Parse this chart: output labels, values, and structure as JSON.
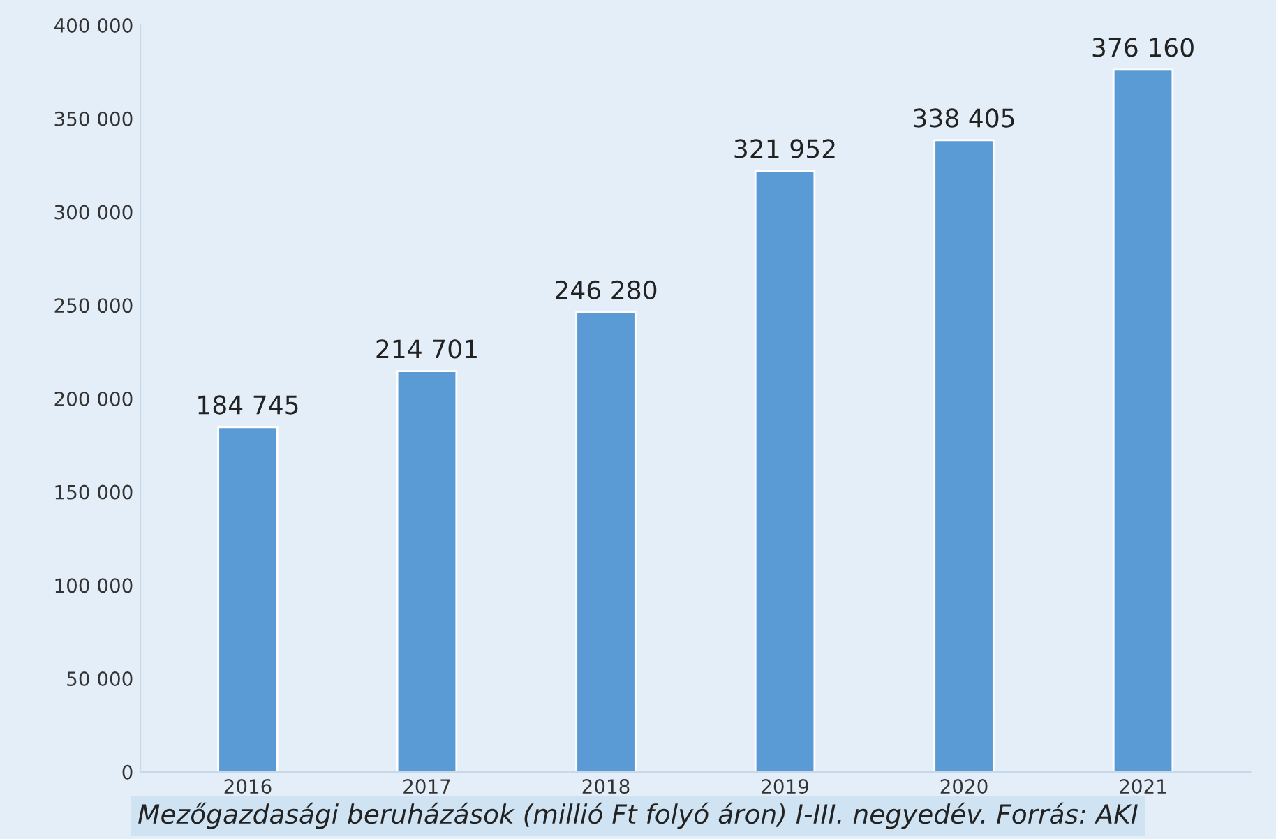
{
  "chart_data": {
    "type": "bar",
    "categories": [
      "2016",
      "2017",
      "2018",
      "2019",
      "2020",
      "2021"
    ],
    "values": [
      184745,
      214701,
      246280,
      321952,
      338405,
      376160
    ],
    "value_labels": [
      "184 745",
      "214 701",
      "246 280",
      "321 952",
      "338 405",
      "376 160"
    ],
    "color": "#5b9bd5",
    "ylim": [
      0,
      400000
    ],
    "yticks": [
      {
        "value": 0,
        "label": "0"
      },
      {
        "value": 50000,
        "label": "50 000"
      },
      {
        "value": 100000,
        "label": "100 000"
      },
      {
        "value": 150000,
        "label": "150 000"
      },
      {
        "value": 200000,
        "label": "200 000"
      },
      {
        "value": 250000,
        "label": "250 000"
      },
      {
        "value": 300000,
        "label": "300 000"
      },
      {
        "value": 350000,
        "label": "350 000"
      },
      {
        "value": 400000,
        "label": "400 000"
      }
    ],
    "grid": false,
    "annotations": [
      "Mezőgazdasági beruházások (millió Ft folyó áron) I-III. negyedév. Forrás: AKI"
    ]
  }
}
